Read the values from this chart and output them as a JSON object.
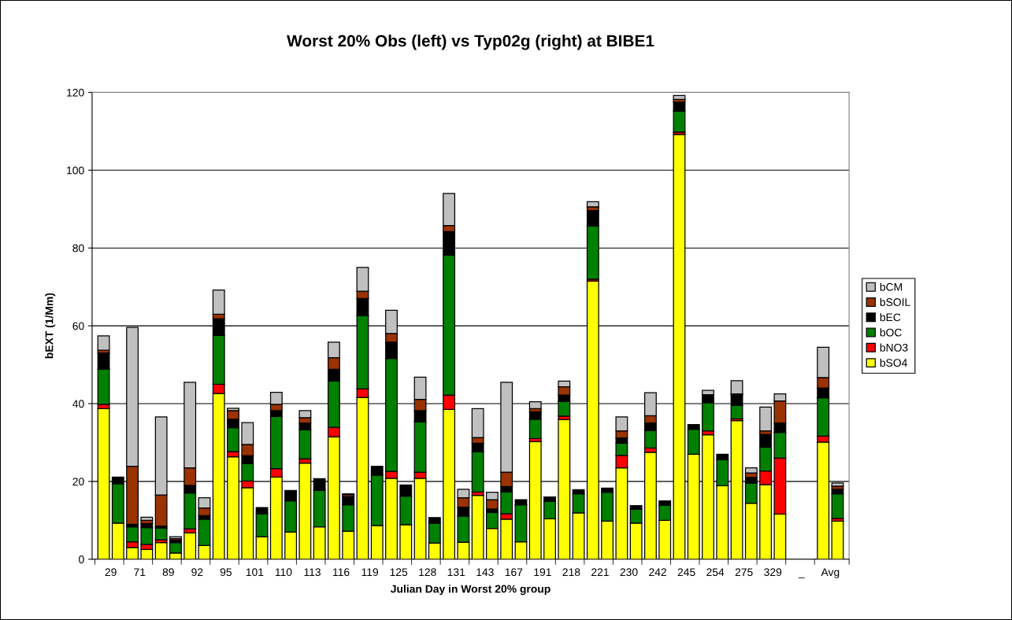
{
  "chart_data": {
    "type": "bar",
    "title": "Worst 20% Obs (left) vs Typ02g (right) at BIBE1",
    "xlabel": "Julian Day in Worst 20% group",
    "ylabel": "bEXT (1/Mm)",
    "categories": [
      "29",
      null,
      "71",
      null,
      "89",
      null,
      "92",
      null,
      "95",
      null,
      "101",
      null,
      "110",
      null,
      "113",
      null,
      "116",
      null,
      "119",
      null,
      "125",
      null,
      "128",
      null,
      "131",
      null,
      "143",
      null,
      "167",
      null,
      "191",
      null,
      "218",
      null,
      "221",
      null,
      "230",
      null,
      "242",
      null,
      "245",
      null,
      "254",
      null,
      "275",
      null,
      "329",
      null,
      "_",
      null,
      "Avg",
      null
    ],
    "stacked": true,
    "ylim": [
      0,
      120
    ],
    "yticks": [
      0,
      20,
      40,
      60,
      80,
      100,
      120
    ],
    "grid": "y",
    "legend": "right",
    "series": [
      {
        "name": "bSO4",
        "color": "#ffff00",
        "values": [
          38.7,
          9.3,
          3.0,
          2.5,
          4.3,
          1.6,
          6.8,
          3.5,
          42.6,
          26.3,
          18.4,
          5.8,
          21.1,
          7.0,
          24.7,
          8.3,
          31.5,
          7.2,
          41.6,
          8.7,
          20.8,
          8.9,
          20.8,
          4.2,
          38.5,
          4.4,
          16.4,
          7.9,
          10.3,
          4.5,
          30.2,
          10.4,
          35.9,
          11.9,
          71.5,
          9.8,
          23.5,
          9.3,
          27.5,
          10.0,
          109.2,
          27.0,
          32.0,
          18.9,
          35.6,
          14.4,
          19.2,
          11.6,
          null,
          null,
          30.1,
          9.8
        ]
      },
      {
        "name": "bNO3",
        "color": "#ff0000",
        "values": [
          1.1,
          null,
          1.5,
          1.3,
          0.7,
          null,
          1.0,
          null,
          2.4,
          1.4,
          1.7,
          null,
          2.2,
          null,
          1.1,
          null,
          2.4,
          null,
          2.2,
          null,
          1.8,
          null,
          1.6,
          null,
          3.7,
          null,
          0.9,
          null,
          1.4,
          null,
          0.8,
          null,
          0.9,
          null,
          0.5,
          null,
          3.2,
          null,
          1.1,
          null,
          0.6,
          null,
          1.0,
          null,
          0.5,
          null,
          3.5,
          14.4,
          null,
          null,
          1.6,
          0.7
        ]
      },
      {
        "name": "bOC",
        "color": "#008000",
        "values": [
          9.0,
          10.1,
          3.8,
          4.3,
          3.0,
          2.7,
          9.2,
          6.8,
          12.5,
          6.1,
          4.5,
          5.9,
          13.4,
          8.0,
          7.5,
          9.4,
          11.9,
          6.8,
          18.8,
          12.9,
          29.0,
          7.3,
          12.9,
          5.1,
          36.0,
          6.7,
          10.3,
          4.1,
          5.6,
          9.5,
          5.0,
          4.5,
          3.8,
          4.9,
          13.7,
          7.4,
          3.1,
          3.5,
          4.5,
          3.9,
          5.4,
          6.4,
          7.2,
          6.7,
          3.4,
          5.2,
          6.1,
          6.6,
          null,
          null,
          9.8,
          6.3
        ]
      },
      {
        "name": "bEC",
        "color": "#000000",
        "values": [
          4.2,
          1.7,
          0.7,
          1.1,
          0.5,
          0.6,
          2.0,
          0.9,
          4.3,
          2.2,
          2.0,
          1.6,
          1.5,
          2.7,
          1.7,
          3.0,
          3.0,
          2.1,
          4.4,
          2.3,
          4.2,
          2.9,
          2.9,
          1.4,
          6.0,
          2.3,
          2.2,
          0.9,
          1.4,
          1.3,
          1.9,
          1.1,
          1.6,
          1.1,
          3.9,
          1.1,
          1.4,
          1.0,
          1.9,
          1.1,
          2.3,
          1.2,
          2.1,
          1.4,
          2.7,
          1.4,
          3.3,
          2.4,
          null,
          null,
          2.5,
          1.2
        ]
      },
      {
        "name": "bSOIL",
        "color": "#993300",
        "values": [
          0.7,
          null,
          14.9,
          0.8,
          8.0,
          0.4,
          4.5,
          2.0,
          1.2,
          2.2,
          2.9,
          null,
          1.6,
          null,
          1.4,
          null,
          3.0,
          0.5,
          1.9,
          null,
          2.2,
          null,
          2.9,
          null,
          1.6,
          2.4,
          1.5,
          2.4,
          3.7,
          null,
          0.8,
          null,
          2.1,
          null,
          1.0,
          null,
          1.8,
          null,
          1.9,
          null,
          0.7,
          null,
          null,
          null,
          0.3,
          1.2,
          0.9,
          5.7,
          null,
          null,
          2.7,
          0.8
        ]
      },
      {
        "name": "bCM",
        "color": "#c0c0c0",
        "values": [
          3.7,
          null,
          35.7,
          0.8,
          20.1,
          0.5,
          22.0,
          2.6,
          6.2,
          0.6,
          5.6,
          null,
          3.1,
          null,
          1.8,
          null,
          4.0,
          0.2,
          6.1,
          null,
          6.0,
          null,
          5.7,
          null,
          8.2,
          2.2,
          7.4,
          1.9,
          23.1,
          null,
          1.8,
          null,
          1.5,
          null,
          1.3,
          null,
          3.6,
          null,
          5.9,
          null,
          1.0,
          null,
          1.1,
          null,
          3.4,
          1.3,
          6.1,
          1.8,
          null,
          null,
          7.8,
          0.8
        ]
      }
    ]
  }
}
